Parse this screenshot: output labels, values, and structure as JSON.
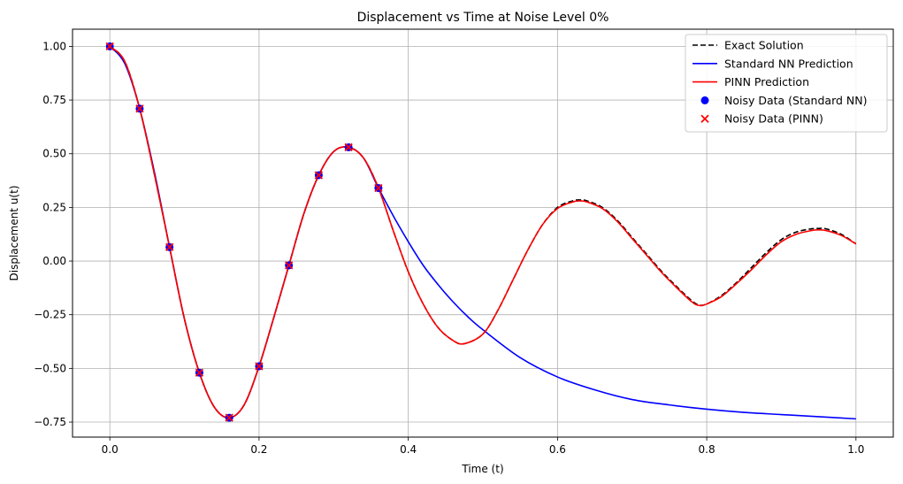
{
  "chart_data": {
    "type": "line",
    "title": "Displacement vs Time at Noise Level 0%",
    "xlabel": "Time (t)",
    "ylabel": "Displacement u(t)",
    "xlim": [
      -0.05,
      1.05
    ],
    "ylim": [
      -0.82,
      1.08
    ],
    "xticks": [
      0.0,
      0.2,
      0.4,
      0.6,
      0.8,
      1.0
    ],
    "xtick_labels": [
      "0.0",
      "0.2",
      "0.4",
      "0.6",
      "0.8",
      "1.0"
    ],
    "yticks": [
      -0.75,
      -0.5,
      -0.25,
      0.0,
      0.25,
      0.5,
      0.75,
      1.0
    ],
    "ytick_labels": [
      "−0.75",
      "−0.50",
      "−0.25",
      "0.00",
      "0.25",
      "0.50",
      "0.75",
      "1.00"
    ],
    "grid": true,
    "legend_position": "top-right",
    "series": [
      {
        "name": "Exact Solution",
        "kind": "line",
        "color": "#000000",
        "dash": "dashed",
        "x": [
          0.0,
          0.02,
          0.04,
          0.06,
          0.08,
          0.1,
          0.12,
          0.14,
          0.16,
          0.18,
          0.2,
          0.22,
          0.24,
          0.26,
          0.28,
          0.3,
          0.32,
          0.34,
          0.36,
          0.38,
          0.4,
          0.42,
          0.44,
          0.46,
          0.475,
          0.5,
          0.52,
          0.54,
          0.56,
          0.58,
          0.6,
          0.62,
          0.63,
          0.64,
          0.66,
          0.68,
          0.7,
          0.72,
          0.74,
          0.76,
          0.78,
          0.79,
          0.8,
          0.82,
          0.84,
          0.86,
          0.88,
          0.9,
          0.92,
          0.94,
          0.95,
          0.96,
          0.98,
          1.0
        ],
        "y": [
          1.0,
          0.93,
          0.71,
          0.4,
          0.065,
          -0.27,
          -0.52,
          -0.68,
          -0.73,
          -0.67,
          -0.49,
          -0.26,
          -0.02,
          0.22,
          0.4,
          0.51,
          0.53,
          0.48,
          0.34,
          0.14,
          -0.05,
          -0.2,
          -0.31,
          -0.37,
          -0.385,
          -0.34,
          -0.23,
          -0.09,
          0.05,
          0.17,
          0.25,
          0.28,
          0.285,
          0.28,
          0.25,
          0.19,
          0.11,
          0.03,
          -0.05,
          -0.12,
          -0.185,
          -0.205,
          -0.2,
          -0.16,
          -0.1,
          -0.03,
          0.04,
          0.1,
          0.135,
          0.15,
          0.152,
          0.15,
          0.125,
          0.08
        ]
      },
      {
        "name": "Standard NN Prediction",
        "kind": "line",
        "color": "#0000ff",
        "dash": "solid",
        "x": [
          0.0,
          0.02,
          0.04,
          0.06,
          0.08,
          0.1,
          0.12,
          0.14,
          0.16,
          0.18,
          0.2,
          0.22,
          0.24,
          0.26,
          0.28,
          0.3,
          0.32,
          0.34,
          0.36,
          0.38,
          0.4,
          0.42,
          0.44,
          0.46,
          0.48,
          0.5,
          0.55,
          0.6,
          0.65,
          0.7,
          0.75,
          0.8,
          0.85,
          0.9,
          0.95,
          1.0
        ],
        "y": [
          1.0,
          0.92,
          0.71,
          0.41,
          0.065,
          -0.27,
          -0.52,
          -0.68,
          -0.73,
          -0.67,
          -0.49,
          -0.26,
          -0.02,
          0.22,
          0.4,
          0.51,
          0.53,
          0.48,
          0.34,
          0.21,
          0.09,
          -0.02,
          -0.11,
          -0.19,
          -0.26,
          -0.32,
          -0.45,
          -0.54,
          -0.6,
          -0.645,
          -0.67,
          -0.69,
          -0.705,
          -0.715,
          -0.725,
          -0.735
        ]
      },
      {
        "name": "PINN Prediction",
        "kind": "line",
        "color": "#ff0000",
        "dash": "solid",
        "x": [
          0.0,
          0.02,
          0.04,
          0.06,
          0.08,
          0.1,
          0.12,
          0.14,
          0.16,
          0.18,
          0.2,
          0.22,
          0.24,
          0.26,
          0.28,
          0.3,
          0.32,
          0.34,
          0.36,
          0.38,
          0.4,
          0.42,
          0.44,
          0.46,
          0.475,
          0.5,
          0.52,
          0.54,
          0.56,
          0.58,
          0.6,
          0.62,
          0.63,
          0.64,
          0.66,
          0.68,
          0.7,
          0.72,
          0.74,
          0.76,
          0.78,
          0.79,
          0.8,
          0.82,
          0.84,
          0.86,
          0.88,
          0.9,
          0.92,
          0.94,
          0.95,
          0.96,
          0.98,
          1.0
        ],
        "y": [
          1.0,
          0.93,
          0.71,
          0.4,
          0.065,
          -0.27,
          -0.52,
          -0.68,
          -0.73,
          -0.67,
          -0.49,
          -0.26,
          -0.02,
          0.22,
          0.4,
          0.51,
          0.53,
          0.48,
          0.34,
          0.14,
          -0.05,
          -0.2,
          -0.31,
          -0.37,
          -0.385,
          -0.34,
          -0.23,
          -0.09,
          0.05,
          0.17,
          0.245,
          0.275,
          0.28,
          0.275,
          0.245,
          0.185,
          0.105,
          0.025,
          -0.055,
          -0.125,
          -0.19,
          -0.207,
          -0.2,
          -0.165,
          -0.105,
          -0.04,
          0.03,
          0.09,
          0.125,
          0.142,
          0.145,
          0.142,
          0.12,
          0.08
        ]
      },
      {
        "name": "Noisy Data (Standard NN)",
        "kind": "scatter",
        "marker": "circle",
        "color": "#0000ff",
        "x": [
          0.0,
          0.04,
          0.08,
          0.12,
          0.16,
          0.2,
          0.24,
          0.28,
          0.32,
          0.36
        ],
        "y": [
          1.0,
          0.71,
          0.065,
          -0.52,
          -0.73,
          -0.49,
          -0.02,
          0.4,
          0.53,
          0.34
        ]
      },
      {
        "name": "Noisy Data (PINN)",
        "kind": "scatter",
        "marker": "x",
        "color": "#ff0000",
        "x": [
          0.0,
          0.04,
          0.08,
          0.12,
          0.16,
          0.2,
          0.24,
          0.28,
          0.32,
          0.36
        ],
        "y": [
          1.0,
          0.71,
          0.065,
          -0.52,
          -0.73,
          -0.49,
          -0.02,
          0.4,
          0.53,
          0.34
        ]
      }
    ]
  }
}
